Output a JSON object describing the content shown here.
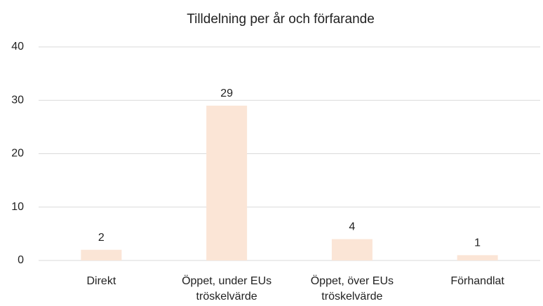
{
  "chart_data": {
    "type": "bar",
    "title": "Tilldelning per år och förfarande",
    "categories": [
      "Direkt",
      "Öppet, under EUs tröskelvärde",
      "Öppet, över EUs tröskelvärde",
      "Förhandlat"
    ],
    "values": [
      2,
      29,
      4,
      1
    ],
    "color": "#fbe5d6",
    "ylim": [
      0,
      40
    ],
    "yticks": [
      0,
      10,
      20,
      30,
      40
    ],
    "grid": true,
    "data_labels": true
  }
}
